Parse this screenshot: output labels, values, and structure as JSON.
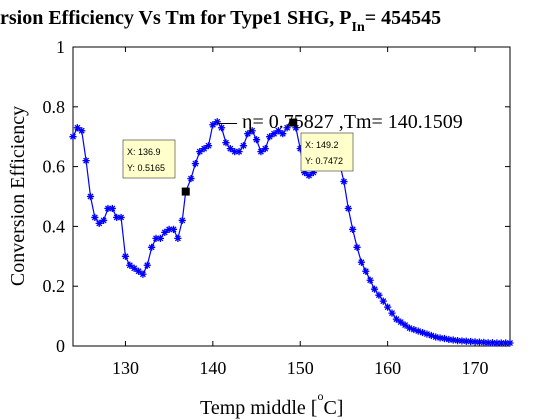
{
  "chart_data": {
    "type": "line",
    "title_main": "rsion Efficiency Vs Tm for Type1 SHG, P",
    "title_sub": "In",
    "title_tail": "= 454545",
    "xlabel_main": "Temp middle [",
    "xlabel_sup": "o",
    "xlabel_tail": "C]",
    "ylabel": "Conversion Efficiency",
    "xlim": [
      124,
      174
    ],
    "ylim": [
      0,
      1
    ],
    "xticks": [
      130,
      140,
      150,
      160,
      170
    ],
    "yticks": [
      0,
      0.2,
      0.4,
      0.6,
      0.8,
      1
    ],
    "xtick_labels": [
      "130",
      "140",
      "150",
      "160",
      "170"
    ],
    "ytick_labels": [
      "0",
      "0.2",
      "0.4",
      "0.6",
      "0.8",
      "1"
    ],
    "series": [
      {
        "color": "#0000ff",
        "marker": "asterisk",
        "x": [
          124,
          124.5,
          125,
          125.5,
          126,
          126.5,
          127,
          127.5,
          128,
          128.5,
          129,
          129.5,
          130,
          130.5,
          131,
          131.5,
          132,
          132.5,
          133,
          133.5,
          134,
          134.5,
          135,
          135.5,
          136,
          136.5,
          136.9,
          137.5,
          138,
          138.5,
          139,
          139.5,
          140,
          140.5,
          141,
          141.5,
          142,
          142.5,
          143,
          143.5,
          144,
          144.5,
          145,
          145.5,
          146,
          146.5,
          147,
          147.5,
          148,
          148.5,
          149.2,
          149.5,
          150,
          150.5,
          151,
          151.5,
          152,
          152.5,
          153,
          153.5,
          154,
          154.5,
          155,
          155.5,
          156,
          156.5,
          157,
          157.5,
          158,
          158.5,
          159,
          159.5,
          160,
          160.5,
          161,
          161.5,
          162,
          162.5,
          163,
          163.5,
          164,
          164.5,
          165,
          165.5,
          166,
          166.5,
          167,
          167.5,
          168,
          168.5,
          169,
          169.5,
          170,
          170.5,
          171,
          171.5,
          172,
          172.5,
          173,
          173.5,
          174
        ],
        "y": [
          0.7,
          0.73,
          0.72,
          0.62,
          0.5,
          0.43,
          0.41,
          0.42,
          0.46,
          0.46,
          0.43,
          0.43,
          0.3,
          0.27,
          0.26,
          0.25,
          0.24,
          0.27,
          0.33,
          0.36,
          0.36,
          0.38,
          0.39,
          0.39,
          0.36,
          0.42,
          0.5165,
          0.56,
          0.61,
          0.65,
          0.66,
          0.67,
          0.74,
          0.75,
          0.73,
          0.68,
          0.66,
          0.65,
          0.65,
          0.67,
          0.71,
          0.72,
          0.69,
          0.65,
          0.66,
          0.7,
          0.71,
          0.72,
          0.71,
          0.73,
          0.7472,
          0.73,
          0.66,
          0.58,
          0.57,
          0.58,
          0.6,
          0.63,
          0.66,
          0.67,
          0.65,
          0.61,
          0.55,
          0.46,
          0.39,
          0.33,
          0.28,
          0.25,
          0.22,
          0.19,
          0.17,
          0.15,
          0.13,
          0.11,
          0.09,
          0.08,
          0.07,
          0.06,
          0.055,
          0.05,
          0.045,
          0.04,
          0.035,
          0.03,
          0.027,
          0.025,
          0.022,
          0.02,
          0.018,
          0.017,
          0.016,
          0.015,
          0.014,
          0.013,
          0.012,
          0.011,
          0.011,
          0.01,
          0.01,
          0.01,
          0.01
        ]
      }
    ],
    "legend_text": "— η= 0.75827 ,Tm= 140.1509",
    "datatips": [
      {
        "x": 136.9,
        "y": 0.5165,
        "x_label": "X:",
        "x_value": "136.9",
        "y_label": "Y:",
        "y_value": "0.5165"
      },
      {
        "x": 149.2,
        "y": 0.7472,
        "x_label": "X:",
        "x_value": "149.2",
        "y_label": "Y:",
        "y_value": "0.7472"
      }
    ]
  }
}
